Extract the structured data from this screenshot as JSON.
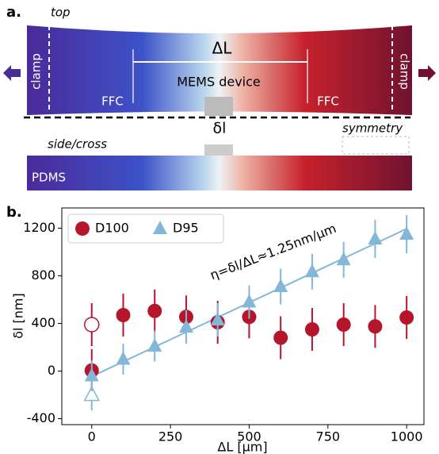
{
  "panel_a": {
    "label": "a.",
    "view_top": "top",
    "clamp_left": "clamp",
    "clamp_right": "clamp",
    "stretch": "ΔL",
    "device": "MEMS device",
    "ffc_left": "FFC",
    "ffc_right": "FFC",
    "gap": "δl",
    "view_side": "side/cross",
    "symmetry": "symmetry",
    "substrate": "PDMS"
  },
  "chart_data": {
    "type": "scatter",
    "panel_label": "b.",
    "x_label": "ΔL [μm]",
    "y_label": "δl [nm]",
    "annotation": "η=δl/ΔL≈1.25nm/μm",
    "xlim": [
      -95,
      1055
    ],
    "ylim": [
      -450,
      1370
    ],
    "xticks": [
      0,
      250,
      500,
      750,
      1000
    ],
    "yticks": [
      -400,
      0,
      400,
      800,
      1200
    ],
    "series": [
      {
        "name": "D100",
        "color": "#b5162b",
        "marker": "circle",
        "x": [
          0,
          100,
          200,
          300,
          400,
          500,
          600,
          700,
          800,
          900,
          1000
        ],
        "values": [
          5,
          470,
          505,
          455,
          410,
          455,
          280,
          350,
          390,
          375,
          450
        ],
        "errors": [
          180,
          180,
          180,
          180,
          180,
          180,
          180,
          180,
          180,
          180,
          180
        ],
        "open": {
          "x": 0,
          "y": 390,
          "error": 180
        }
      },
      {
        "name": "D95",
        "color": "#82b7d8",
        "marker": "triangle",
        "x": [
          0,
          100,
          200,
          300,
          400,
          500,
          600,
          700,
          800,
          900,
          1000
        ],
        "values": [
          -40,
          100,
          210,
          370,
          430,
          580,
          710,
          835,
          935,
          1110,
          1150
        ],
        "errors": [
          130,
          130,
          130,
          140,
          140,
          140,
          150,
          150,
          150,
          160,
          160
        ],
        "open": {
          "x": 0,
          "y": -200,
          "error": 130
        }
      }
    ],
    "fit": {
      "color": "#82b7d8",
      "x": [
        0,
        1000
      ],
      "y": [
        -45,
        1195
      ]
    },
    "legend": "upper left"
  }
}
